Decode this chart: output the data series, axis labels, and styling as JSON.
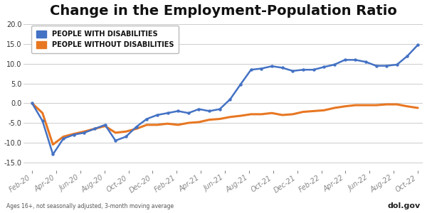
{
  "title": "Change in the Employment-Population Ratio",
  "subtitle": "Ages 16+, not seasonally adjusted, 3-month moving average",
  "watermark": "dol.gov",
  "legend": [
    "PEOPLE WITH DISABILITIES",
    "PEOPLE WITHOUT DISABILITIES"
  ],
  "legend_colors": [
    "#4472c4",
    "#e87722"
  ],
  "x_labels": [
    "Feb-20",
    "Apr-20",
    "Jun-20",
    "Aug-20",
    "Oct-20",
    "Dec-20",
    "Feb-21",
    "Apr-21",
    "Jun-21",
    "Aug-21",
    "Oct-21",
    "Dec-21",
    "Feb-22",
    "Apr-22",
    "Jun-22",
    "Aug-22",
    "Oct-22"
  ],
  "ylim": [
    -17,
    21
  ],
  "yticks": [
    -15.0,
    -10.0,
    -5.0,
    0.0,
    5.0,
    10.0,
    15.0,
    20.0
  ],
  "disabilities_y": [
    0.0,
    -4.5,
    -13.0,
    -9.0,
    -8.0,
    -7.5,
    -6.5,
    -5.5,
    -9.5,
    -8.5,
    -6.0,
    -4.0,
    -3.0,
    -2.5,
    -2.0,
    -2.5,
    -1.5,
    -2.0,
    -1.5,
    1.0,
    4.8,
    8.5,
    8.8,
    9.4,
    9.0,
    8.2,
    8.5,
    8.5,
    9.2,
    9.8,
    11.0,
    11.0,
    10.5,
    9.5,
    9.5,
    9.8,
    12.0,
    14.8
  ],
  "no_disabilities_y": [
    0.0,
    -2.5,
    -10.5,
    -8.5,
    -7.8,
    -7.2,
    -6.5,
    -5.8,
    -7.5,
    -7.2,
    -6.5,
    -5.5,
    -5.5,
    -5.2,
    -5.5,
    -5.0,
    -4.8,
    -4.2,
    -4.0,
    -3.5,
    -3.2,
    -2.8,
    -2.8,
    -2.5,
    -3.0,
    -2.8,
    -2.2,
    -2.0,
    -1.8,
    -1.2,
    -0.8,
    -0.5,
    -0.5,
    -0.5,
    -0.3,
    -0.3,
    -0.8,
    -1.2
  ],
  "n_points": 38,
  "background_color": "#ffffff",
  "grid_color": "#cccccc",
  "line_color_dis": "#4472c4",
  "line_color_nodis": "#e87722",
  "marker_color_dis": "#4472c4",
  "title_fontsize": 14,
  "legend_fontsize": 7,
  "tick_fontsize": 7,
  "subtitle_fontsize": 5.5,
  "watermark_fontsize": 8
}
